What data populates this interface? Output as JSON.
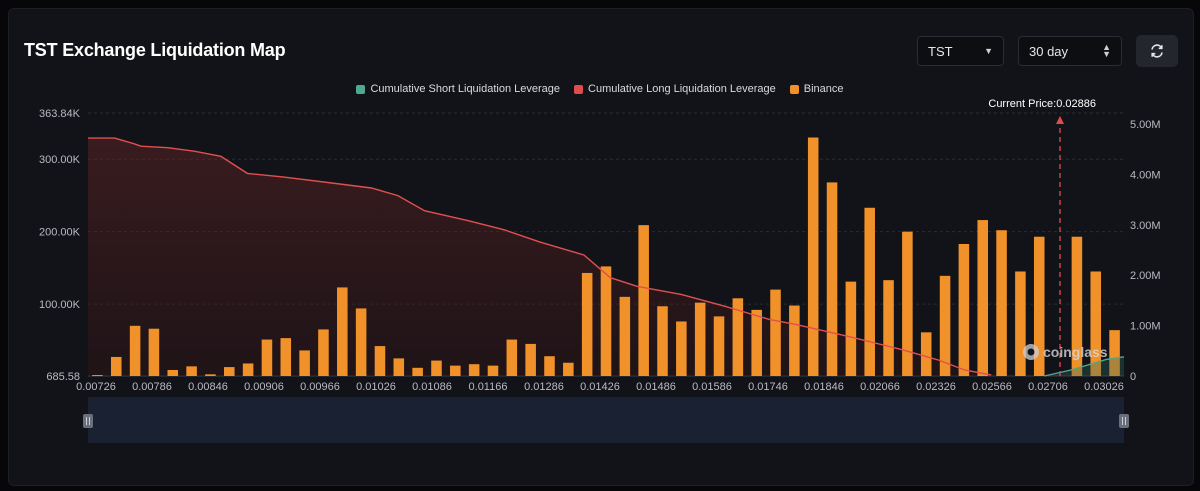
{
  "header": {
    "title": "TST Exchange Liquidation Map",
    "symbol_select": "TST",
    "range_select": "30 day"
  },
  "legend": {
    "items": [
      {
        "label": "Cumulative Short Liquidation Leverage",
        "color": "#4fa88f"
      },
      {
        "label": "Cumulative Long Liquidation Leverage",
        "color": "#e04b4b"
      },
      {
        "label": "Binance",
        "color": "#f0912a"
      }
    ]
  },
  "current_price_label": "Current Price:0.02886",
  "watermark": "coinglass",
  "chart_data": {
    "type": "bar",
    "left_axis": {
      "min": 685.58,
      "max": 363840,
      "tick_values": [
        685.58,
        100000,
        200000,
        300000,
        363840
      ],
      "tick_labels": [
        "685.58",
        "100.00K",
        "200.00K",
        "300.00K",
        "363.84K"
      ]
    },
    "right_axis": {
      "min": 0,
      "max": 5000000,
      "tick_values": [
        0,
        1000000,
        2000000,
        3000000,
        4000000,
        5000000
      ],
      "tick_labels": [
        "0",
        "1.00M",
        "2.00M",
        "3.00M",
        "4.00M",
        "5.00M"
      ]
    },
    "x_axis": {
      "min": 0.00726,
      "max": 0.03066,
      "tick_labels": [
        "0.00726",
        "0.00786",
        "0.00846",
        "0.00906",
        "0.00966",
        "0.01026",
        "0.01086",
        "0.01166",
        "0.01286",
        "0.01426",
        "0.01486",
        "0.01586",
        "0.01746",
        "0.01846",
        "0.02066",
        "0.02326",
        "0.02566",
        "0.02706",
        "0.03026"
      ]
    },
    "current_price": 0.02886,
    "series": [
      {
        "name": "Binance",
        "axis": "left",
        "values": [
          2000,
          27000,
          70000,
          66000,
          9000,
          14000,
          3000,
          13000,
          18000,
          51000,
          53000,
          36000,
          65000,
          123000,
          94000,
          42000,
          25000,
          12000,
          22000,
          15000,
          17000,
          15000,
          51000,
          45000,
          28000,
          19000,
          143000,
          152000,
          110000,
          209000,
          97000,
          76000,
          102000,
          83000,
          108000,
          92000,
          120000,
          98000,
          330000,
          268000,
          131000,
          233000,
          133000,
          200000,
          61000,
          139000,
          183000,
          216000,
          202000,
          145000,
          193000,
          0,
          193000,
          145000,
          64000
        ]
      },
      {
        "name": "Cumulative Long Liquidation Leverage",
        "axis": "right",
        "points": [
          [
            0.00726,
            4.72
          ],
          [
            0.00786,
            4.72
          ],
          [
            0.00826,
            4.62
          ],
          [
            0.00846,
            4.56
          ],
          [
            0.00906,
            4.53
          ],
          [
            0.00966,
            4.46
          ],
          [
            0.01026,
            4.36
          ],
          [
            0.01086,
            4.02
          ],
          [
            0.01166,
            3.95
          ],
          [
            0.01286,
            3.82
          ],
          [
            0.01366,
            3.73
          ],
          [
            0.01426,
            3.58
          ],
          [
            0.01486,
            3.28
          ],
          [
            0.01586,
            3.08
          ],
          [
            0.01666,
            2.9
          ],
          [
            0.01746,
            2.66
          ],
          [
            0.01846,
            2.4
          ],
          [
            0.01906,
            1.95
          ],
          [
            0.01966,
            1.78
          ],
          [
            0.02066,
            1.62
          ],
          [
            0.02166,
            1.38
          ],
          [
            0.02266,
            1.12
          ],
          [
            0.02326,
            1.02
          ],
          [
            0.02446,
            0.78
          ],
          [
            0.02566,
            0.52
          ],
          [
            0.02646,
            0.32
          ],
          [
            0.02706,
            0.12
          ],
          [
            0.02766,
            0.02
          ]
        ]
      },
      {
        "name": "Cumulative Short Liquidation Leverage",
        "axis": "right",
        "points": [
          [
            0.02886,
            0.0
          ],
          [
            0.02946,
            0.12
          ],
          [
            0.03026,
            0.33
          ],
          [
            0.03066,
            0.38
          ]
        ]
      }
    ]
  }
}
